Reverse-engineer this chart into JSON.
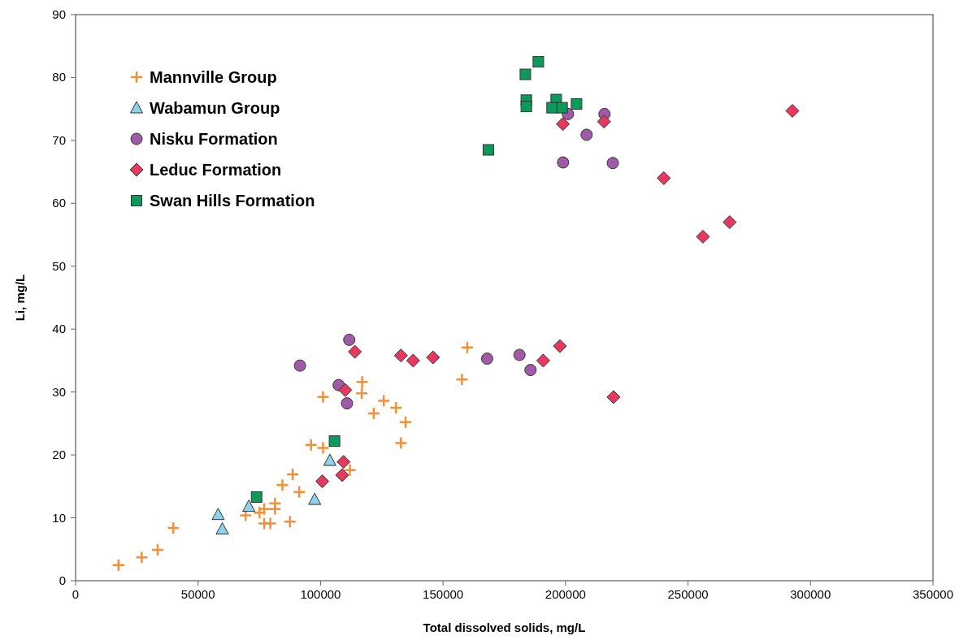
{
  "chart_data": {
    "type": "scatter",
    "xlabel": "Total dissolved solids, mg/L",
    "ylabel": "Li, mg/L",
    "xlim": [
      0,
      350000
    ],
    "ylim": [
      0,
      90
    ],
    "xticks": [
      0,
      50000,
      100000,
      150000,
      200000,
      250000,
      300000,
      350000
    ],
    "yticks": [
      0,
      10,
      20,
      30,
      40,
      50,
      60,
      70,
      80,
      90
    ],
    "grid": false,
    "legend": "top left",
    "series": [
      {
        "name": "Mannville Group",
        "color": "#f0913a",
        "marker": "cross",
        "x": [
          17500,
          27000,
          33500,
          39900,
          69400,
          75100,
          77000,
          81400,
          81400,
          77000,
          79500,
          87500,
          91300,
          84400,
          88600,
          112000,
          96100,
          101000,
          132800,
          134700,
          130800,
          125800,
          121700,
          116800,
          101000,
          117000,
          157700,
          159900
        ],
        "values": [
          2.5,
          3.7,
          4.9,
          8.4,
          10.4,
          10.8,
          11.4,
          12.3,
          11.4,
          9.1,
          9.1,
          9.4,
          14.1,
          15.2,
          16.9,
          17.6,
          21.6,
          21.1,
          21.9,
          25.2,
          27.5,
          28.6,
          26.6,
          29.8,
          29.2,
          31.6,
          32.0,
          37.1
        ]
      },
      {
        "name": "Wabamun Group",
        "color": "#8fd3ea",
        "marker": "triangle",
        "x": [
          58200,
          59900,
          70700,
          97600,
          103800
        ],
        "values": [
          10.5,
          8.2,
          11.8,
          12.9,
          19.1
        ]
      },
      {
        "name": "Nisku Formation",
        "color": "#a05aa8",
        "marker": "circle",
        "x": [
          91600,
          111700,
          107400,
          110800,
          168000,
          181200,
          185700,
          201000,
          215900,
          208600,
          199000,
          219300
        ],
        "values": [
          34.2,
          38.3,
          31.1,
          28.2,
          35.3,
          35.9,
          33.5,
          74.2,
          74.2,
          70.9,
          66.5,
          66.4
        ]
      },
      {
        "name": "Leduc Formation",
        "color": "#e8385e",
        "marker": "diamond",
        "x": [
          109400,
          108800,
          100700,
          114000,
          110100,
          132800,
          137800,
          145900,
          190900,
          197700,
          198900,
          215700,
          292600,
          240100,
          267000,
          256100,
          219600
        ],
        "values": [
          18.9,
          16.8,
          15.8,
          36.4,
          30.3,
          35.8,
          35.0,
          35.5,
          35.0,
          37.3,
          72.6,
          73.0,
          74.7,
          64.0,
          57.0,
          54.7,
          29.2
        ]
      },
      {
        "name": "Swan Hills Formation",
        "color": "#0a9a5a",
        "marker": "square",
        "x": [
          73900,
          105700,
          168500,
          188900,
          183600,
          184000,
          184000,
          196200,
          194500,
          198600,
          204500
        ],
        "values": [
          13.3,
          22.2,
          68.5,
          82.5,
          80.5,
          76.4,
          75.4,
          76.5,
          75.2,
          75.2,
          75.8
        ]
      }
    ]
  }
}
